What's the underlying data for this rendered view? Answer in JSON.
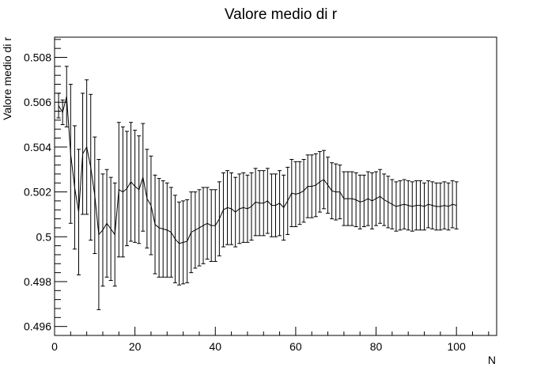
{
  "chart_data": {
    "type": "line",
    "title": "Valore medio di r",
    "xlabel": "N",
    "ylabel": "Valore medio di r",
    "xlim": [
      0,
      110
    ],
    "ylim": [
      0.4956,
      0.5089
    ],
    "xticks": [
      0,
      20,
      40,
      60,
      80,
      100
    ],
    "xtick_labels": [
      "0",
      "20",
      "40",
      "60",
      "80",
      "100"
    ],
    "yticks": [
      0.496,
      0.498,
      0.5,
      0.502,
      0.504,
      0.506,
      0.508
    ],
    "ytick_labels": [
      "0.496",
      "0.498",
      "0.5",
      "0.502",
      "0.504",
      "0.506",
      "0.508"
    ],
    "grid": false,
    "legend": "none",
    "line_color": "#000000",
    "series": [
      {
        "x": [
          1,
          2,
          3,
          4,
          5,
          6,
          7,
          8,
          9,
          10,
          11,
          12,
          13,
          14,
          15,
          16,
          17,
          18,
          19,
          20,
          21,
          22,
          23,
          24,
          25,
          26,
          27,
          28,
          29,
          30,
          31,
          32,
          33,
          34,
          35,
          36,
          37,
          38,
          39,
          40,
          41,
          42,
          43,
          44,
          45,
          46,
          47,
          48,
          49,
          50,
          51,
          52,
          53,
          54,
          55,
          56,
          57,
          58,
          59,
          60,
          61,
          62,
          63,
          64,
          65,
          66,
          67,
          68,
          69,
          70,
          71,
          72,
          73,
          74,
          75,
          76,
          77,
          78,
          79,
          80,
          81,
          82,
          83,
          84,
          85,
          86,
          87,
          88,
          89,
          90,
          91,
          92,
          93,
          94,
          95,
          96,
          97,
          98,
          99,
          100
        ],
        "y": [
          0.50585,
          0.50555,
          0.50625,
          0.5037,
          0.5022,
          0.5011,
          0.5037,
          0.504,
          0.5031,
          0.50185,
          0.5001,
          0.5003,
          0.5006,
          0.50035,
          0.5001,
          0.5021,
          0.502,
          0.50215,
          0.50245,
          0.50225,
          0.5021,
          0.50265,
          0.5017,
          0.5014,
          0.50055,
          0.5004,
          0.50035,
          0.5003,
          0.5002,
          0.4999,
          0.4997,
          0.49975,
          0.4998,
          0.5002,
          0.5003,
          0.5004,
          0.5005,
          0.5006,
          0.5005,
          0.5005,
          0.5008,
          0.5012,
          0.5013,
          0.50125,
          0.5011,
          0.50125,
          0.5013,
          0.50125,
          0.50135,
          0.50155,
          0.5015,
          0.5015,
          0.5016,
          0.5014,
          0.5014,
          0.5015,
          0.5013,
          0.5016,
          0.50195,
          0.5019,
          0.50195,
          0.50205,
          0.50225,
          0.50225,
          0.5023,
          0.50245,
          0.50255,
          0.5023,
          0.50205,
          0.502,
          0.502,
          0.5017,
          0.5017,
          0.5017,
          0.50165,
          0.50155,
          0.5016,
          0.5017,
          0.5016,
          0.5017,
          0.5018,
          0.50165,
          0.50155,
          0.50145,
          0.50135,
          0.5014,
          0.50145,
          0.5014,
          0.50135,
          0.5014,
          0.5014,
          0.50135,
          0.50145,
          0.5014,
          0.50135,
          0.50135,
          0.5014,
          0.50135,
          0.50145,
          0.5014
        ],
        "err": [
          0.00055,
          0.00055,
          0.00135,
          0.0031,
          0.00275,
          0.0028,
          0.0027,
          0.003,
          0.00325,
          0.0026,
          0.00335,
          0.0025,
          0.0024,
          0.0023,
          0.0023,
          0.003,
          0.0029,
          0.00255,
          0.00265,
          0.0025,
          0.0024,
          0.0024,
          0.0022,
          0.0022,
          0.0022,
          0.0022,
          0.00215,
          0.0021,
          0.002,
          0.00195,
          0.00185,
          0.00185,
          0.00185,
          0.0018,
          0.0017,
          0.0017,
          0.0017,
          0.0016,
          0.0016,
          0.0016,
          0.00165,
          0.00165,
          0.00165,
          0.0016,
          0.00155,
          0.00155,
          0.00155,
          0.0015,
          0.0015,
          0.0015,
          0.00145,
          0.00145,
          0.00145,
          0.0014,
          0.0014,
          0.00145,
          0.00145,
          0.0015,
          0.0015,
          0.00145,
          0.0014,
          0.0014,
          0.0014,
          0.0014,
          0.0014,
          0.00135,
          0.0013,
          0.00125,
          0.00125,
          0.00125,
          0.0012,
          0.0012,
          0.0012,
          0.0012,
          0.0012,
          0.0012,
          0.00115,
          0.0012,
          0.00125,
          0.0012,
          0.0012,
          0.00115,
          0.00115,
          0.0011,
          0.0011,
          0.0011,
          0.0011,
          0.0011,
          0.0011,
          0.0011,
          0.0011,
          0.00105,
          0.00105,
          0.00105,
          0.00105,
          0.00105,
          0.00105,
          0.00105,
          0.00105,
          0.00105
        ]
      }
    ]
  }
}
